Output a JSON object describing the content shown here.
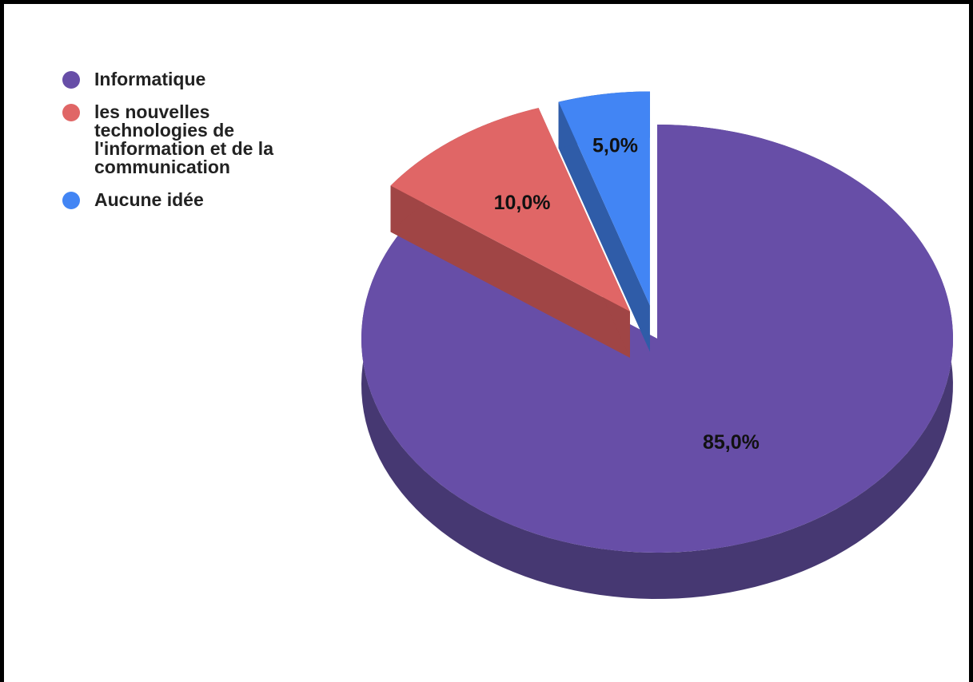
{
  "chart_data": {
    "type": "pie",
    "categories": [
      "Informatique",
      "les nouvelles technologies de l'information et de la communication",
      "Aucune idée"
    ],
    "values": [
      85.0,
      10.0,
      5.0
    ],
    "data_labels": [
      "85,0%",
      "10,0%",
      "5,0%"
    ],
    "colors": [
      "#674ea7",
      "#e06666",
      "#4285f4"
    ],
    "side_colors": [
      "#463872",
      "#a04545",
      "#2f5ca8"
    ],
    "legend_position": "left",
    "style": "3d-exploded",
    "exploded": [
      false,
      true,
      true
    ]
  },
  "legend": {
    "items": [
      {
        "label": "Informatique",
        "color": "#674ea7"
      },
      {
        "label": "les nouvelles technologies de l'information et de la communication",
        "color": "#e06666"
      },
      {
        "label": "Aucune idée",
        "color": "#4285f4"
      }
    ]
  }
}
